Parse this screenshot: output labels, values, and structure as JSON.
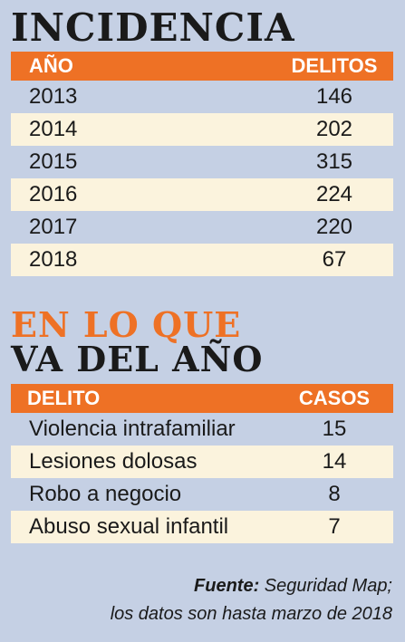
{
  "incidencia": {
    "title": "INCIDENCIA",
    "headers": [
      "AÑO",
      "DELITOS"
    ],
    "rows": [
      [
        "2013",
        "146"
      ],
      [
        "2014",
        "202"
      ],
      [
        "2015",
        "315"
      ],
      [
        "2016",
        "224"
      ],
      [
        "2017",
        "220"
      ],
      [
        "2018",
        "67"
      ]
    ]
  },
  "del_ano": {
    "title_line1": "EN LO QUE",
    "title_line2": "VA DEL AÑO",
    "headers": [
      "DELITO",
      "CASOS"
    ],
    "rows": [
      [
        "Violencia intrafamiliar",
        "15"
      ],
      [
        "Lesiones dolosas",
        "14"
      ],
      [
        "Robo a negocio",
        "8"
      ],
      [
        "Abuso sexual infantil",
        "7"
      ]
    ]
  },
  "source": {
    "label": "Fuente:",
    "text": " Seguridad Map;",
    "line2": "los datos son hasta marzo de 2018"
  },
  "colors": {
    "background": "#c5d0e4",
    "accent": "#ee7125",
    "stripe": "#fbf3dd"
  }
}
